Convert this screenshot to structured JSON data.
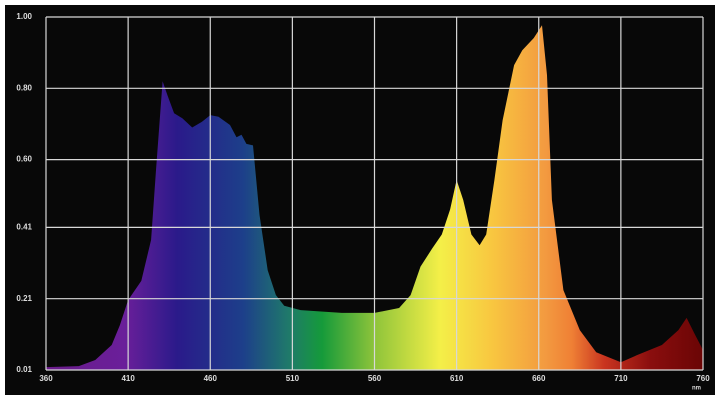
{
  "chart_data": {
    "type": "area",
    "x_label": "nm",
    "x": [
      360,
      380,
      390,
      400,
      405,
      410,
      418,
      424,
      427,
      431,
      434,
      438,
      443,
      449,
      455,
      460,
      465,
      472,
      476,
      479,
      482,
      486,
      490,
      495,
      500,
      505,
      515,
      540,
      560,
      575,
      582,
      588,
      595,
      601,
      606,
      610,
      614,
      619,
      624,
      628,
      633,
      638,
      645,
      650,
      657,
      662,
      665,
      668,
      675,
      685,
      695,
      710,
      720,
      735,
      745,
      750,
      755,
      760
    ],
    "values": [
      0.018,
      0.021,
      0.038,
      0.08,
      0.136,
      0.206,
      0.26,
      0.375,
      0.57,
      0.82,
      0.78,
      0.73,
      0.716,
      0.69,
      0.706,
      0.725,
      0.72,
      0.697,
      0.663,
      0.67,
      0.644,
      0.64,
      0.445,
      0.29,
      0.22,
      0.19,
      0.178,
      0.17,
      0.17,
      0.184,
      0.22,
      0.3,
      0.35,
      0.39,
      0.46,
      0.543,
      0.487,
      0.39,
      0.36,
      0.39,
      0.543,
      0.71,
      0.865,
      0.907,
      0.941,
      0.977,
      0.837,
      0.487,
      0.234,
      0.122,
      0.06,
      0.032,
      0.052,
      0.08,
      0.122,
      0.156,
      0.11,
      0.066
    ],
    "xlim": [
      360,
      760
    ],
    "xticks": [
      360,
      410,
      460,
      510,
      560,
      610,
      660,
      710,
      760
    ],
    "ylim": [
      0.01,
      1.0
    ],
    "yticks": [
      0.01,
      0.21,
      0.41,
      {
        "value": 0.6,
        "label": "0.60"
      },
      {
        "value": 0.8,
        "label": "0.80"
      },
      {
        "value": 1.0,
        "label": "1.00"
      }
    ],
    "grid": true
  }
}
